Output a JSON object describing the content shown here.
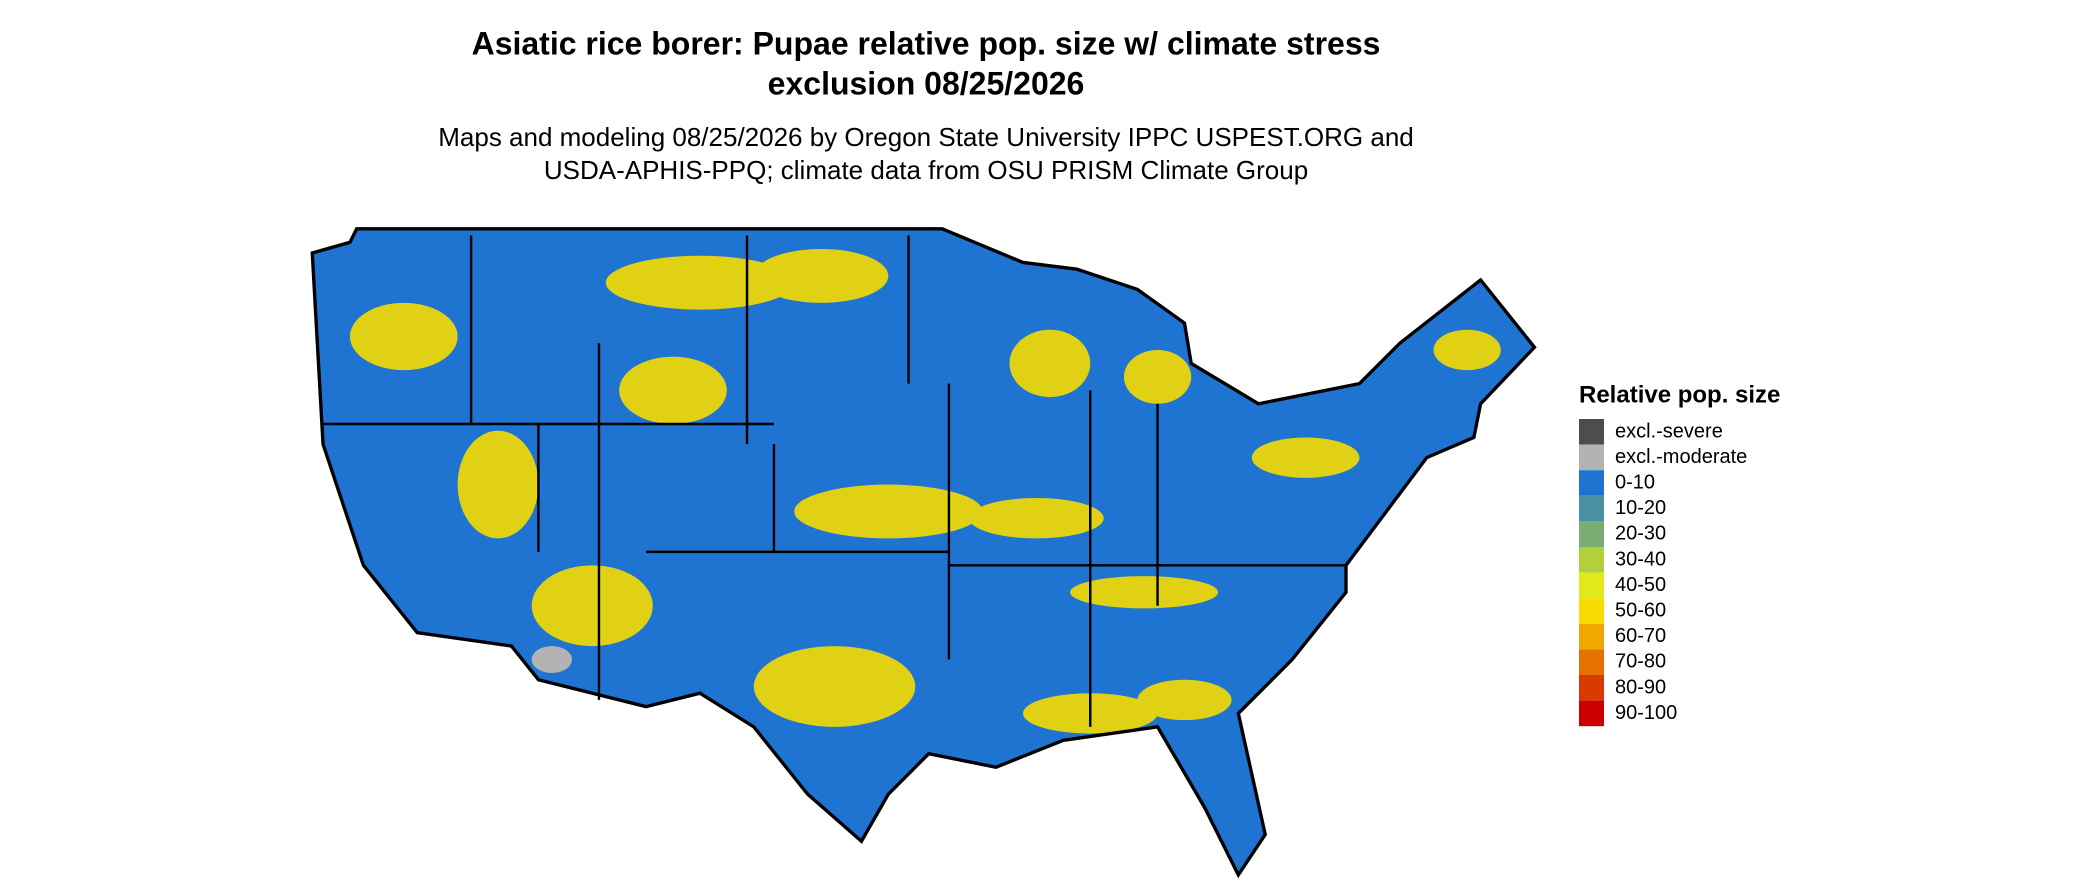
{
  "title_lines": [
    "Asiatic rice borer: Pupae relative pop. size w/ climate stress",
    "exclusion 08/25/2026"
  ],
  "subtitle_lines": [
    "Maps and modeling 08/25/2026 by Oregon State University IPPC USPEST.ORG and",
    "USDA-APHIS-PPQ; climate data from OSU PRISM Climate Group"
  ],
  "legend": {
    "title": "Relative pop. size",
    "items": [
      {
        "label": "excl.-severe",
        "color": "#4d4d4d"
      },
      {
        "label": "excl.-moderate",
        "color": "#b3b3b3"
      },
      {
        "label": "0-10",
        "color": "#1f74d1"
      },
      {
        "label": "10-20",
        "color": "#4a90a4"
      },
      {
        "label": "20-30",
        "color": "#7aad74"
      },
      {
        "label": "30-40",
        "color": "#b2cf3c"
      },
      {
        "label": "40-50",
        "color": "#e3e81a"
      },
      {
        "label": "50-60",
        "color": "#f6dc00"
      },
      {
        "label": "60-70",
        "color": "#f0a800"
      },
      {
        "label": "70-80",
        "color": "#e57200"
      },
      {
        "label": "80-90",
        "color": "#d83a00"
      },
      {
        "label": "90-100",
        "color": "#cc0000"
      }
    ]
  }
}
